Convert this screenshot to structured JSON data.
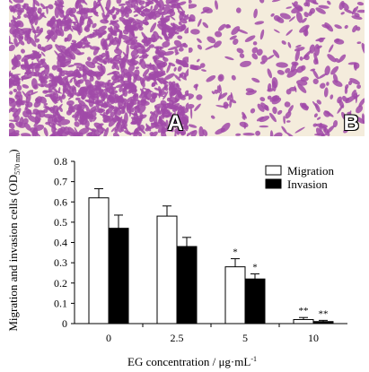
{
  "panels": [
    {
      "label": "A",
      "density": "high"
    },
    {
      "label": "B",
      "density": "low"
    }
  ],
  "colors": {
    "stain": "#a04aa8",
    "background": "#f4ecdc"
  },
  "chart_data": {
    "type": "bar",
    "categories": [
      "0",
      "2.5",
      "5",
      "10"
    ],
    "series": [
      {
        "name": "Migration",
        "color": "#ffffff",
        "values": [
          0.62,
          0.53,
          0.28,
          0.02
        ],
        "errors": [
          0.045,
          0.05,
          0.04,
          0.01
        ],
        "annotations": [
          "",
          "",
          "*",
          "**"
        ]
      },
      {
        "name": "Invasion",
        "color": "#000000",
        "values": [
          0.47,
          0.38,
          0.22,
          0.01
        ],
        "errors": [
          0.065,
          0.045,
          0.025,
          0.006
        ],
        "annotations": [
          "",
          "",
          "*",
          "**"
        ]
      }
    ],
    "xlabel": "EG concentration / μg·mL",
    "xlabel_sup": "-1",
    "ylabel": "Migration and invasion cells (OD",
    "ylabel_sub": "570 nm",
    "ylabel_end": ")",
    "yticks": [
      "0",
      "0.1",
      "0.2",
      "0.3",
      "0.4",
      "0.5",
      "0.6",
      "0.7",
      "0.8"
    ],
    "ylim": [
      0,
      0.8
    ],
    "legend_position": "top-right"
  }
}
